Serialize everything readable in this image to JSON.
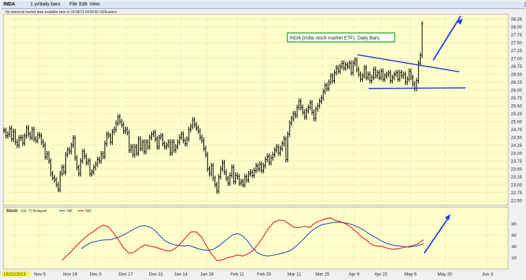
{
  "window": {
    "symbol": "INDA",
    "period": "1 yr/daily bars",
    "menu": [
      "File",
      "Edit",
      "View"
    ],
    "notice": "No historical market data available prior to 10/18/13 04:00:00 US/Eastern"
  },
  "annotation": {
    "text": "INDA (India stock market ETF). Daily Bars."
  },
  "colors": {
    "background": "#ffffcc",
    "bars": "#000000",
    "k_line": "#2a52be",
    "d_line": "#e02020",
    "arrow": "#1f3fe0",
    "label_border": "#22aa22"
  },
  "chart_data": [
    {
      "type": "ohlc",
      "title": "INDA (India stock market ETF). Daily Bars.",
      "x_ticks": [
        "10/22/2013",
        "Nov 5",
        "Nov 19",
        "Dec 3",
        "Dec 17",
        "Dec 31",
        "Jan 14",
        "Jan 28",
        "Feb 11",
        "Feb 25",
        "Mar 11",
        "Mar 25",
        "Apr 9",
        "Apr 22",
        "May 6",
        "May 20",
        "Jun 3"
      ],
      "y_ticks": [
        22.5,
        22.75,
        23.0,
        23.25,
        23.5,
        23.75,
        24.0,
        24.25,
        24.5,
        24.75,
        25.0,
        25.25,
        25.5,
        25.75,
        26.0,
        26.25,
        26.5,
        26.75,
        27.0,
        27.25,
        27.5,
        27.75,
        28.0,
        28.25
      ],
      "ylim": [
        22.35,
        28.4
      ],
      "close": [
        24.72,
        24.55,
        24.6,
        24.78,
        24.45,
        24.68,
        24.35,
        24.25,
        24.48,
        24.5,
        24.32,
        24.55,
        24.8,
        24.6,
        24.5,
        24.75,
        24.45,
        24.4,
        24.58,
        24.55,
        24.35,
        24.25,
        23.88,
        23.98,
        23.75,
        23.35,
        23.22,
        23.15,
        23.0,
        22.85,
        23.35,
        23.55,
        23.4,
        23.95,
        24.1,
        24.05,
        24.25,
        24.48,
        23.85,
        23.55,
        23.35,
        23.75,
        24.05,
        23.9,
        23.7,
        23.75,
        23.35,
        23.4,
        23.55,
        23.65,
        23.8,
        23.75,
        23.98,
        23.9,
        24.3,
        24.6,
        24.55,
        24.35,
        24.68,
        24.75,
        24.95,
        25.15,
        25.0,
        24.9,
        24.7,
        24.75,
        24.65,
        24.1,
        24.2,
        23.95,
        24.2,
        24.0,
        24.45,
        24.15,
        24.35,
        24.05,
        24.35,
        24.2,
        24.5,
        24.6,
        24.65,
        24.45,
        24.2,
        24.5,
        24.55,
        24.3,
        24.2,
        24.25,
        24.35,
        24.0,
        24.35,
        24.1,
        24.2,
        24.35,
        24.5,
        24.6,
        24.4,
        24.3,
        24.45,
        24.75,
        24.85,
        25.05,
        24.9,
        24.8,
        24.7,
        24.5,
        24.4,
        24.15,
        23.95,
        23.5,
        23.35,
        23.6,
        23.2,
        23.0,
        22.8,
        23.25,
        23.5,
        23.7,
        23.4,
        23.2,
        23.05,
        23.3,
        23.55,
        23.1,
        23.3,
        23.25,
        23.05,
        23.1,
        23.0,
        23.25,
        23.15,
        23.35,
        23.4,
        23.3,
        23.45,
        23.6,
        23.5,
        23.65,
        23.45,
        23.6,
        23.8,
        23.9,
        23.7,
        23.85,
        23.95,
        24.1,
        24.2,
        24.0,
        24.15,
        24.3,
        24.45,
        23.8,
        24.6,
        24.95,
        25.1,
        25.25,
        25.2,
        25.45,
        25.65,
        25.45,
        25.3,
        25.15,
        25.35,
        25.45,
        25.6,
        25.3,
        25.1,
        25.4,
        25.5,
        25.65,
        25.75,
        25.95,
        26.15,
        26.05,
        26.25,
        26.45,
        26.3,
        26.55,
        26.7,
        26.6,
        26.75,
        26.85,
        26.7,
        26.8,
        26.75,
        26.85,
        26.55,
        26.85,
        26.95,
        26.65,
        26.5,
        26.35,
        26.45,
        26.7,
        26.4,
        26.5,
        26.3,
        26.4,
        26.65,
        26.45,
        26.55,
        26.4,
        26.6,
        26.35,
        26.45,
        26.5,
        26.55,
        26.3,
        26.4,
        26.5,
        26.55,
        26.35,
        26.55,
        26.45,
        26.5,
        26.25,
        26.35,
        26.6,
        26.4,
        26.2,
        26.05,
        26.3,
        26.85,
        27.1,
        28.1
      ],
      "annotations": [
        "Upper trendline falling from about 27.1",
        "Lower support line near 26.05",
        "Up arrows after breakout"
      ]
    },
    {
      "type": "line",
      "title": "Stoch",
      "params": "(14, 7) Delayed",
      "legend": [
        "%K",
        "%D"
      ],
      "y_ticks": [
        20,
        40,
        60,
        80
      ],
      "ylim": [
        0,
        100
      ],
      "series": [
        {
          "name": "%K",
          "values": [
            36,
            42,
            47,
            49,
            51,
            52,
            52,
            55,
            58,
            62,
            67,
            72,
            76,
            77,
            75,
            69,
            60,
            51,
            46,
            43,
            42,
            41,
            42,
            39,
            36,
            34,
            33,
            35,
            40,
            47,
            54,
            61,
            63,
            59,
            50,
            38,
            29,
            25,
            23,
            24,
            26,
            28,
            30,
            34,
            41,
            49,
            58,
            67,
            73,
            78,
            80,
            82,
            83,
            83,
            82,
            80,
            77,
            73,
            68,
            62,
            57,
            52,
            47,
            44,
            42,
            41,
            40,
            39,
            40,
            42,
            45
          ]
        },
        {
          "name": "%D",
          "values": [
            15,
            24,
            33,
            43,
            52,
            60,
            66,
            73,
            78,
            75,
            64,
            51,
            37,
            28,
            30,
            37,
            43,
            41,
            39,
            36,
            33,
            32,
            37,
            46,
            56,
            66,
            66,
            57,
            41,
            26,
            15,
            16,
            20,
            22,
            25,
            23,
            27,
            33,
            44,
            58,
            72,
            83,
            87,
            86,
            80,
            74,
            74,
            76,
            74,
            82,
            86,
            89,
            91,
            86,
            84,
            80,
            74,
            66,
            57,
            51,
            43,
            41,
            40,
            37,
            35,
            36,
            38,
            40,
            42,
            45,
            52
          ]
        }
      ]
    }
  ]
}
